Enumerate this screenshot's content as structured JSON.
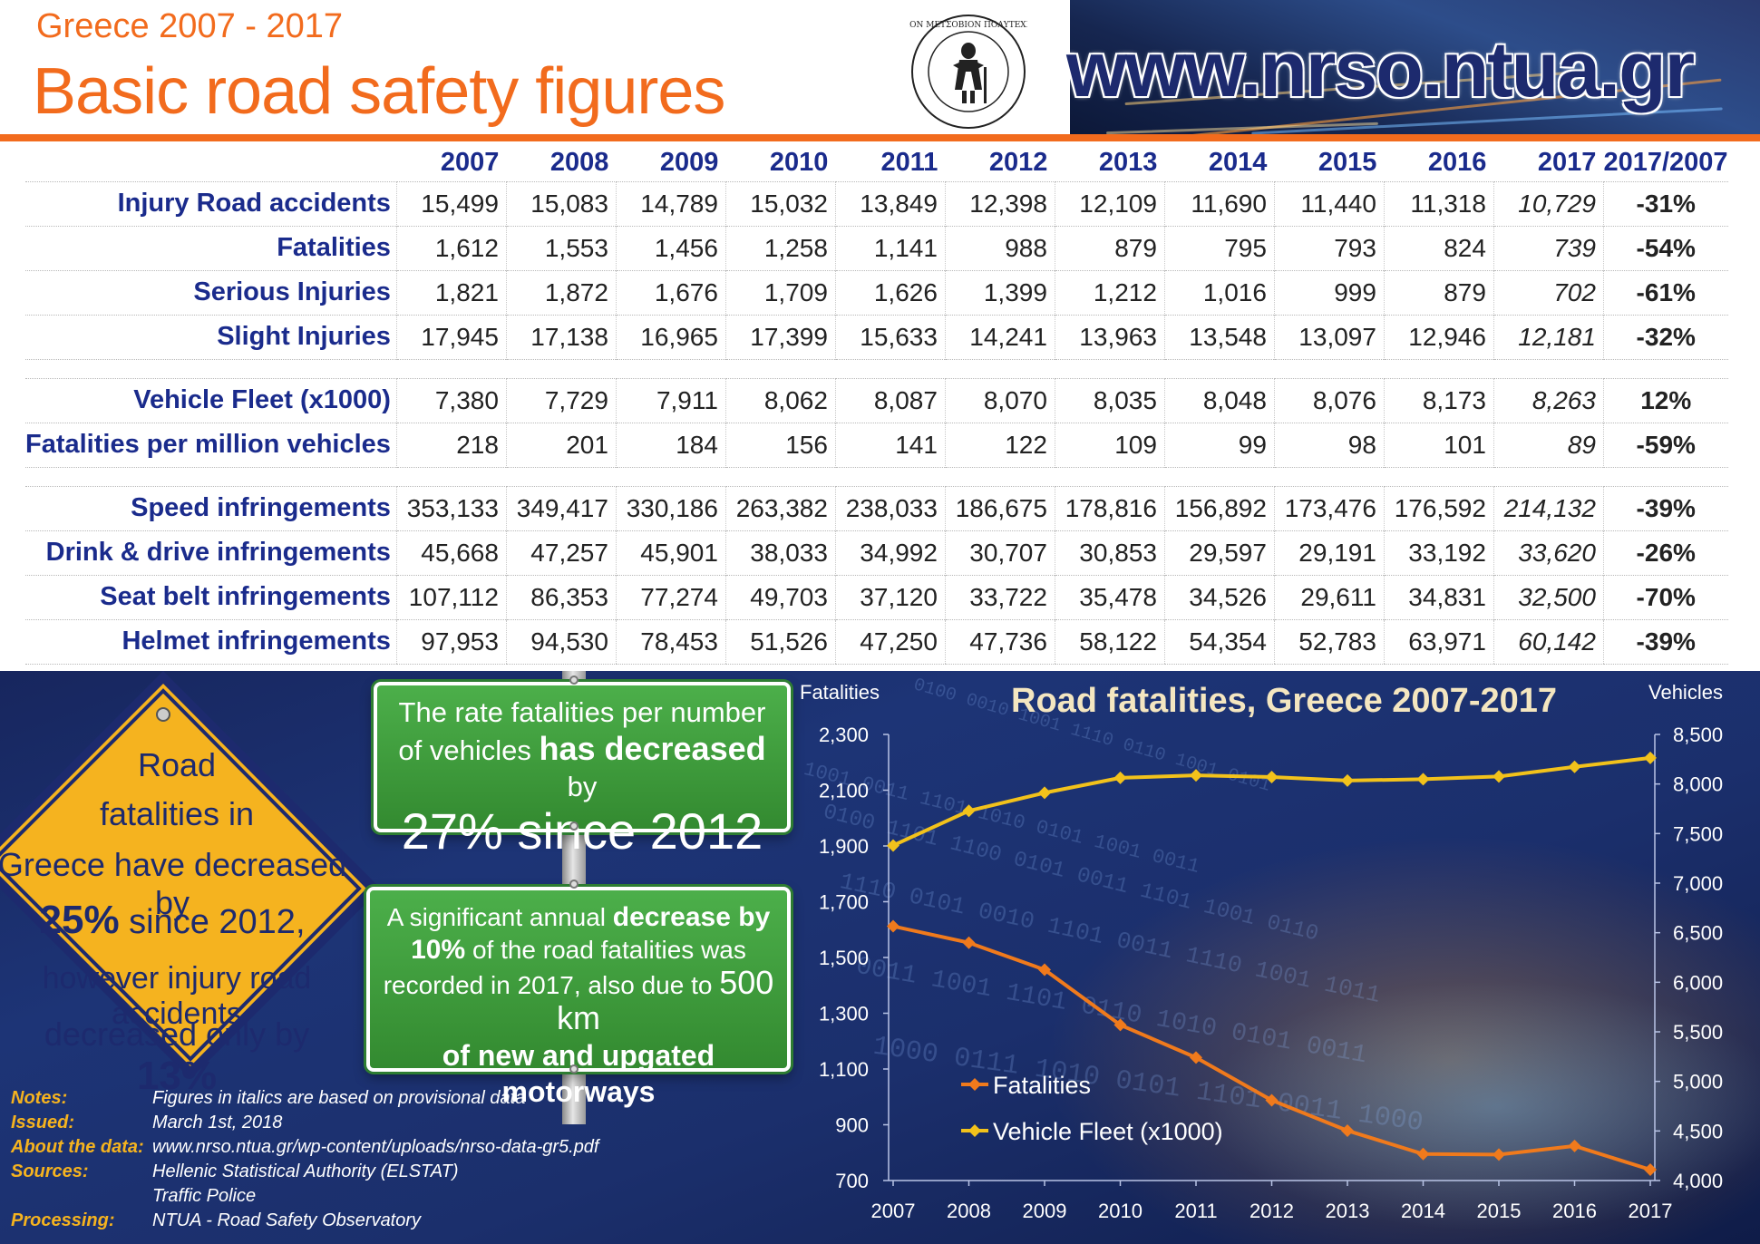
{
  "header": {
    "subtitle": "Greece 2007 - 2017",
    "title": "Basic road safety figures",
    "url": "www.nrso.ntua.gr"
  },
  "table": {
    "columns": [
      "2007",
      "2008",
      "2009",
      "2010",
      "2011",
      "2012",
      "2013",
      "2014",
      "2015",
      "2016",
      "2017",
      "2017/2007"
    ],
    "groups": [
      [
        {
          "label": "Injury Road accidents",
          "values": [
            "15,499",
            "15,083",
            "14,789",
            "15,032",
            "13,849",
            "12,398",
            "12,109",
            "11,690",
            "11,440",
            "11,318",
            "10,729"
          ],
          "change": "-31%"
        },
        {
          "label": "Fatalities",
          "values": [
            "1,612",
            "1,553",
            "1,456",
            "1,258",
            "1,141",
            "988",
            "879",
            "795",
            "793",
            "824",
            "739"
          ],
          "change": "-54%"
        },
        {
          "label": "Serious Injuries",
          "values": [
            "1,821",
            "1,872",
            "1,676",
            "1,709",
            "1,626",
            "1,399",
            "1,212",
            "1,016",
            "999",
            "879",
            "702"
          ],
          "change": "-61%"
        },
        {
          "label": "Slight Injuries",
          "values": [
            "17,945",
            "17,138",
            "16,965",
            "17,399",
            "15,633",
            "14,241",
            "13,963",
            "13,548",
            "13,097",
            "12,946",
            "12,181"
          ],
          "change": "-32%"
        }
      ],
      [
        {
          "label": "Vehicle Fleet (x1000)",
          "values": [
            "7,380",
            "7,729",
            "7,911",
            "8,062",
            "8,087",
            "8,070",
            "8,035",
            "8,048",
            "8,076",
            "8,173",
            "8,263"
          ],
          "change": "12%"
        },
        {
          "label": "Fatalities per million vehicles",
          "values": [
            "218",
            "201",
            "184",
            "156",
            "141",
            "122",
            "109",
            "99",
            "98",
            "101",
            "89"
          ],
          "change": "-59%"
        }
      ],
      [
        {
          "label": "Speed infringements",
          "values": [
            "353,133",
            "349,417",
            "330,186",
            "263,382",
            "238,033",
            "186,675",
            "178,816",
            "156,892",
            "173,476",
            "176,592",
            "214,132"
          ],
          "change": "-39%"
        },
        {
          "label": "Drink & drive infringements",
          "values": [
            "45,668",
            "47,257",
            "45,901",
            "38,033",
            "34,992",
            "30,707",
            "30,853",
            "29,597",
            "29,191",
            "33,192",
            "33,620"
          ],
          "change": "-26%"
        },
        {
          "label": "Seat belt infringements",
          "values": [
            "107,112",
            "86,353",
            "77,274",
            "49,703",
            "37,120",
            "33,722",
            "35,478",
            "34,526",
            "29,611",
            "34,831",
            "32,500"
          ],
          "change": "-70%"
        },
        {
          "label": "Helmet infringements",
          "values": [
            "97,953",
            "94,530",
            "78,453",
            "51,526",
            "47,250",
            "47,736",
            "58,122",
            "54,354",
            "52,783",
            "63,971",
            "60,142"
          ],
          "change": "-39%"
        }
      ]
    ]
  },
  "warning_sign": {
    "line1": "Road",
    "line2": "fatalities in",
    "line3": "Greece have decreased by",
    "pct1": "25%",
    "line4": " since 2012,",
    "line5": "however injury road accidents",
    "line6": "decreased only by ",
    "pct2": "13%"
  },
  "sign_top": {
    "pre": "The rate fatalities per number of vehicles ",
    "bold": "has decreased",
    "post": " by",
    "big": "27%  since 2012"
  },
  "sign_bottom": {
    "pre": "A significant annual ",
    "bold": "decrease by 10%",
    "mid": "of the road fatalities was recorded in 2017, also due to ",
    "km": "500 km",
    "last": "of new and upgated motorways"
  },
  "notes": [
    {
      "key": "Notes:",
      "value": "Figures in italics are based on provisional data"
    },
    {
      "key": "Issued:",
      "value": "March 1st, 2018"
    },
    {
      "key": "About the data:",
      "value": "www.nrso.ntua.gr/wp-content/uploads/nrso-data-gr5.pdf"
    },
    {
      "key": "Sources:",
      "value": "Hellenic Statistical Authority (ELSTAT)"
    },
    {
      "key": "",
      "value": "Traffic Police"
    },
    {
      "key": "Processing:",
      "value": "NTUA - Road Safety Observatory"
    }
  ],
  "colors": {
    "orange": "#f26b1d",
    "navy": "#1a2b8c",
    "yellow": "#f5b31f",
    "green": "#3e9b3a",
    "fatality_line": "#f07a1c",
    "fleet_line": "#f2c21b"
  },
  "chart_data": {
    "type": "line",
    "title": "Road fatalities, Greece 2007-2017",
    "ylabel_left": "Fatalities",
    "ylabel_right": "Vehicles",
    "x": [
      "2007",
      "2008",
      "2009",
      "2010",
      "2011",
      "2012",
      "2013",
      "2014",
      "2015",
      "2016",
      "2017"
    ],
    "ylim_left": [
      700,
      2300
    ],
    "yticks_left": [
      700,
      900,
      1100,
      1300,
      1500,
      1700,
      1900,
      2100,
      2300
    ],
    "ylim_right": [
      4000,
      8500
    ],
    "yticks_right": [
      4000,
      4500,
      5000,
      5500,
      6000,
      6500,
      7000,
      7500,
      8000,
      8500
    ],
    "series": [
      {
        "name": "Fatalities",
        "axis": "left",
        "values": [
          1612,
          1553,
          1456,
          1258,
          1141,
          988,
          879,
          795,
          793,
          824,
          739
        ]
      },
      {
        "name": "Vehicle Fleet (x1000)",
        "axis": "right",
        "values": [
          7380,
          7729,
          7911,
          8062,
          8087,
          8070,
          8035,
          8048,
          8076,
          8173,
          8263
        ]
      }
    ],
    "legend_position": "lower-left"
  }
}
